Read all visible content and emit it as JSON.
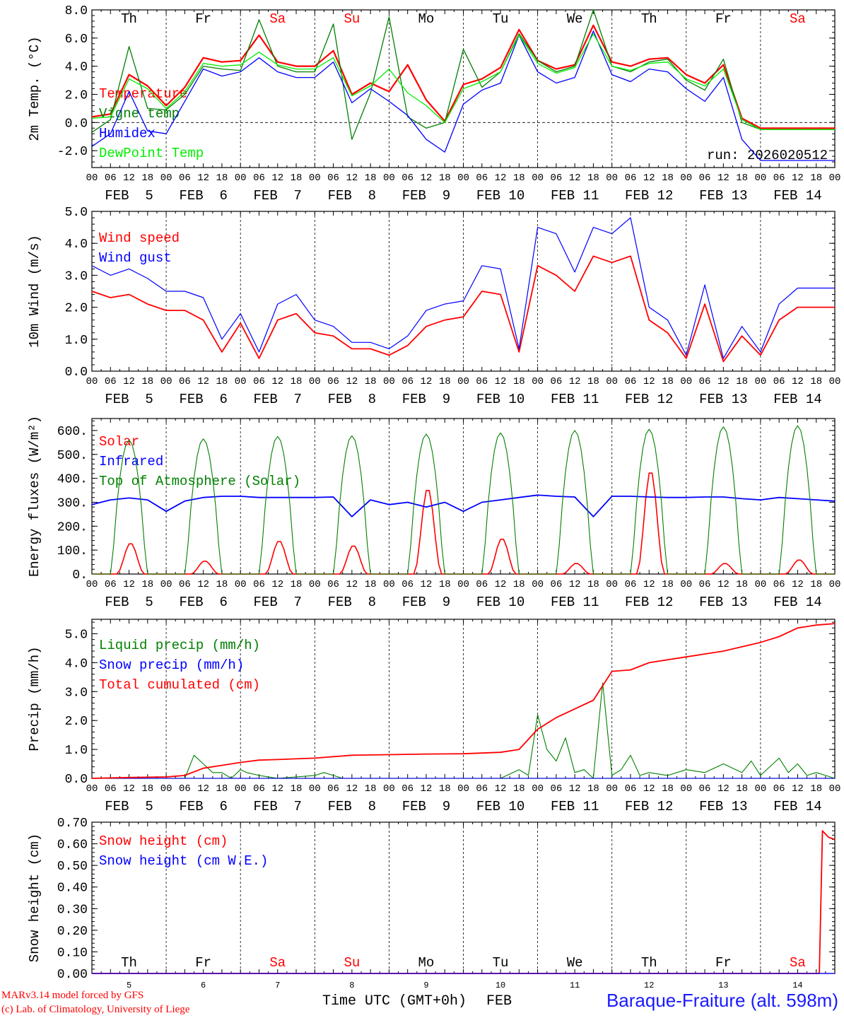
{
  "chart_data": [
    {
      "type": "line",
      "ylabel": "2m Temp. (°C)",
      "ylim": [
        -3.2,
        8.0
      ],
      "yticks": [
        8.0,
        6.0,
        4.0,
        2.0,
        0.0,
        -2.0
      ],
      "ytick_labels": [
        "8.0",
        "6.0",
        "4.0",
        "2.0",
        "0.0",
        "-2.0"
      ],
      "zero_line": true,
      "day_labels": [
        "Th",
        "Fr",
        "Sa",
        "Su",
        "Mo",
        "Tu",
        "We",
        "Th",
        "Fr",
        "Sa"
      ],
      "date_labels": [
        "FEB  5",
        "FEB  6",
        "FEB  7",
        "FEB  8",
        "FEB  9",
        "FEB 10",
        "FEB 11",
        "FEB 12",
        "FEB 13",
        "FEB 14"
      ],
      "hour_labels": [
        "00",
        "06",
        "12",
        "18"
      ],
      "annotation": "run: 2026020512",
      "x_hours": [
        0,
        6,
        12,
        18,
        24,
        30,
        36,
        42,
        48,
        54,
        60,
        66,
        72,
        78,
        84,
        90,
        96,
        102,
        108,
        114,
        120,
        126,
        132,
        138,
        144,
        150,
        156,
        162,
        168,
        174,
        180,
        186,
        192,
        198,
        204,
        210,
        216,
        222,
        228,
        234,
        240
      ],
      "series": [
        {
          "name": "Temperature",
          "color": "#ff0000",
          "width": 2.2,
          "values": [
            0.4,
            0.6,
            3.4,
            2.6,
            1.2,
            2.5,
            4.6,
            4.3,
            4.4,
            6.2,
            4.3,
            4.0,
            4.0,
            5.1,
            2.0,
            2.8,
            2.2,
            4.1,
            1.6,
            0.1,
            2.7,
            3.1,
            3.9,
            6.6,
            4.4,
            3.8,
            4.1,
            6.9,
            4.3,
            4.0,
            4.5,
            4.6,
            3.4,
            2.8,
            4.1,
            0.3,
            -0.4,
            -0.4,
            -0.4,
            -0.4,
            -0.4
          ]
        },
        {
          "name": "Vigne temp",
          "color": "#008000",
          "width": 1.3,
          "values": [
            -0.7,
            0.2,
            5.4,
            1.0,
            0.9,
            2.0,
            4.0,
            3.8,
            3.7,
            7.3,
            4.0,
            3.6,
            3.6,
            7.0,
            -1.2,
            2.1,
            7.5,
            0.4,
            -0.4,
            0.0,
            5.2,
            2.5,
            3.6,
            6.3,
            4.4,
            3.6,
            4.0,
            8.0,
            4.0,
            3.6,
            4.3,
            4.5,
            3.0,
            2.3,
            4.5,
            0.0,
            -0.5,
            -0.5,
            -0.5,
            -0.5,
            -0.5
          ]
        },
        {
          "name": "Humidex",
          "color": "#0000ff",
          "width": 1.3,
          "values": [
            -1.7,
            -0.8,
            2.2,
            -0.6,
            -0.8,
            1.5,
            3.8,
            3.3,
            3.6,
            4.6,
            3.6,
            3.2,
            3.2,
            4.3,
            1.4,
            2.4,
            1.5,
            0.5,
            -1.2,
            -2.1,
            1.3,
            2.3,
            2.8,
            6.2,
            3.6,
            2.8,
            3.2,
            6.5,
            3.4,
            2.9,
            3.8,
            3.6,
            2.4,
            1.5,
            3.2,
            -1.2,
            -2.7,
            -2.7,
            -2.7,
            -2.7,
            -2.7
          ]
        },
        {
          "name": "DewPoint Temp",
          "color": "#00ee00",
          "width": 1.3,
          "values": [
            0.3,
            0.4,
            3.1,
            2.4,
            1.0,
            2.2,
            4.2,
            4.0,
            4.1,
            5.0,
            4.1,
            3.8,
            3.8,
            4.6,
            1.9,
            2.6,
            3.8,
            2.1,
            1.2,
            0.0,
            2.4,
            2.9,
            3.6,
            6.2,
            4.2,
            3.5,
            3.9,
            6.3,
            4.0,
            3.7,
            4.2,
            4.3,
            3.1,
            2.6,
            3.8,
            0.2,
            -0.5,
            -0.5,
            -0.5,
            -0.5,
            -0.5
          ]
        }
      ]
    },
    {
      "type": "line",
      "ylabel": "10m Wind (m/s)",
      "ylim": [
        0.0,
        5.0
      ],
      "yticks": [
        5.0,
        4.0,
        3.0,
        2.0,
        1.0,
        0.0
      ],
      "ytick_labels": [
        "5.0",
        "4.0",
        "3.0",
        "2.0",
        "1.0",
        "0.0"
      ],
      "date_labels": [
        "FEB  5",
        "FEB  6",
        "FEB  7",
        "FEB  8",
        "FEB  9",
        "FEB 10",
        "FEB 11",
        "FEB 12",
        "FEB 13",
        "FEB 14"
      ],
      "hour_labels": [
        "00",
        "06",
        "12",
        "18"
      ],
      "x_hours": [
        0,
        6,
        12,
        18,
        24,
        30,
        36,
        42,
        48,
        54,
        60,
        66,
        72,
        78,
        84,
        90,
        96,
        102,
        108,
        114,
        120,
        126,
        132,
        138,
        144,
        150,
        156,
        162,
        168,
        174,
        180,
        186,
        192,
        198,
        204,
        210,
        216,
        222,
        228,
        234,
        240
      ],
      "series": [
        {
          "name": "Wind speed",
          "color": "#ff0000",
          "width": 1.8,
          "values": [
            2.5,
            2.3,
            2.4,
            2.1,
            1.9,
            1.9,
            1.6,
            0.6,
            1.5,
            0.4,
            1.6,
            1.8,
            1.2,
            1.1,
            0.7,
            0.7,
            0.5,
            0.8,
            1.4,
            1.6,
            1.7,
            2.5,
            2.4,
            0.6,
            3.3,
            3.0,
            2.5,
            3.6,
            3.4,
            3.6,
            1.6,
            1.2,
            0.4,
            2.1,
            0.3,
            1.1,
            0.5,
            1.6,
            2.0,
            2.0,
            2.0
          ]
        },
        {
          "name": "Wind gust",
          "color": "#0000ff",
          "width": 1.2,
          "values": [
            3.3,
            3.0,
            3.2,
            2.9,
            2.5,
            2.5,
            2.3,
            1.0,
            1.8,
            0.6,
            2.1,
            2.4,
            1.6,
            1.4,
            0.9,
            0.9,
            0.7,
            1.1,
            1.9,
            2.1,
            2.2,
            3.3,
            3.2,
            0.7,
            4.5,
            4.3,
            3.1,
            4.5,
            4.3,
            4.8,
            2.0,
            1.6,
            0.5,
            2.7,
            0.4,
            1.4,
            0.6,
            2.1,
            2.6,
            2.6,
            2.6
          ]
        }
      ]
    },
    {
      "type": "line",
      "ylabel": "Energy fluxes (W/m²)",
      "ylim": [
        0,
        650
      ],
      "yticks": [
        600,
        500,
        400,
        300,
        200,
        100,
        0
      ],
      "ytick_labels": [
        "600.",
        "500.",
        "400.",
        "300.",
        "200.",
        "100.",
        "0."
      ],
      "date_labels": [
        "FEB  5",
        "FEB  6",
        "FEB  7",
        "FEB  8",
        "FEB  9",
        "FEB 10",
        "FEB 11",
        "FEB 12",
        "FEB 13",
        "FEB 14"
      ],
      "hour_labels": [
        "00",
        "06",
        "12",
        "18"
      ],
      "daily_peaks": {
        "Solar": [
          130,
          55,
          140,
          120,
          360,
          150,
          45,
          435,
          45,
          60
        ],
        "Top of Atmosphere (Solar)": [
          560,
          565,
          575,
          578,
          585,
          590,
          600,
          605,
          615,
          620
        ]
      },
      "series": [
        {
          "name": "Solar",
          "color": "#ff0000",
          "width": 1.6
        },
        {
          "name": "Infrared",
          "color": "#0000ff",
          "width": 1.8,
          "x_hours": [
            0,
            6,
            12,
            18,
            24,
            30,
            36,
            42,
            48,
            54,
            60,
            66,
            72,
            78,
            84,
            90,
            96,
            102,
            108,
            114,
            120,
            126,
            132,
            138,
            144,
            150,
            156,
            162,
            168,
            174,
            180,
            186,
            192,
            198,
            204,
            210,
            216,
            222,
            228,
            234,
            240
          ],
          "values": [
            290,
            310,
            318,
            310,
            262,
            305,
            320,
            325,
            325,
            320,
            320,
            320,
            320,
            322,
            240,
            310,
            290,
            300,
            280,
            300,
            262,
            300,
            310,
            320,
            330,
            325,
            322,
            240,
            325,
            325,
            322,
            320,
            320,
            322,
            322,
            315,
            310,
            320,
            315,
            310,
            305
          ]
        },
        {
          "name": "Top of Atmosphere (Solar)",
          "color": "#008000",
          "width": 1.1
        }
      ]
    },
    {
      "type": "line",
      "ylabel": "Precip (mm/h)",
      "ylim": [
        0.0,
        5.5
      ],
      "yticks": [
        5.0,
        4.0,
        3.0,
        2.0,
        1.0,
        0.0
      ],
      "ytick_labels": [
        "5.0",
        "4.0",
        "3.0",
        "2.0",
        "1.0",
        "0.0"
      ],
      "date_labels": [
        "FEB  5",
        "FEB  6",
        "FEB  7",
        "FEB  8",
        "FEB  9",
        "FEB 10",
        "FEB 11",
        "FEB 12",
        "FEB 13",
        "FEB 14"
      ],
      "hour_labels": [
        "00",
        "06",
        "12",
        "18"
      ],
      "series": [
        {
          "name": "Liquid precip (mm/h)",
          "color": "#008000",
          "width": 1.1,
          "x_hours": [
            0,
            30,
            33,
            36,
            39,
            42,
            45,
            48,
            50,
            54,
            60,
            72,
            75,
            78,
            81,
            84,
            96,
            108,
            120,
            132,
            138,
            141,
            144,
            147,
            150,
            153,
            156,
            159,
            162,
            165,
            168,
            171,
            174,
            177,
            180,
            186,
            192,
            198,
            204,
            210,
            213,
            216,
            219,
            222,
            225,
            228,
            231,
            234,
            237,
            240
          ],
          "values": [
            0,
            0,
            0.8,
            0.5,
            0.2,
            0.2,
            0,
            0.3,
            0.2,
            0.1,
            0,
            0.1,
            0.2,
            0.1,
            0,
            0,
            0,
            0,
            0,
            0,
            0.3,
            0.1,
            2.2,
            1.0,
            0.6,
            1.4,
            0.2,
            0.3,
            0,
            3.3,
            0.1,
            0.3,
            0.8,
            0.1,
            0.2,
            0.1,
            0.3,
            0.2,
            0.5,
            0.2,
            0.6,
            0.1,
            0.4,
            0.7,
            0.2,
            0.5,
            0.1,
            0.2,
            0.1,
            0
          ]
        },
        {
          "name": "Snow precip (mm/h)",
          "color": "#0000ff",
          "width": 1.1,
          "x_hours": [
            0,
            24,
            48,
            72,
            96,
            120,
            144,
            168,
            192,
            216,
            240
          ],
          "values": [
            0,
            0,
            0,
            0,
            0,
            0,
            0,
            0,
            0,
            0,
            0
          ]
        },
        {
          "name": "Total cumulated (cm)",
          "color": "#ff0000",
          "width": 1.8,
          "x_hours": [
            0,
            12,
            24,
            30,
            36,
            42,
            48,
            54,
            60,
            72,
            84,
            96,
            108,
            120,
            132,
            138,
            144,
            150,
            156,
            162,
            168,
            174,
            180,
            192,
            204,
            216,
            222,
            228,
            234,
            240
          ],
          "values": [
            0,
            0.03,
            0.05,
            0.1,
            0.35,
            0.45,
            0.55,
            0.63,
            0.65,
            0.7,
            0.8,
            0.82,
            0.84,
            0.85,
            0.9,
            1.0,
            1.7,
            2.1,
            2.4,
            2.7,
            3.7,
            3.75,
            4.0,
            4.2,
            4.4,
            4.7,
            4.9,
            5.2,
            5.3,
            5.35
          ]
        }
      ]
    },
    {
      "type": "line",
      "ylabel": "Snow height (cm)",
      "ylim": [
        0.0,
        0.7
      ],
      "yticks": [
        0.7,
        0.6,
        0.5,
        0.4,
        0.3,
        0.2,
        0.1,
        0.0
      ],
      "ytick_labels": [
        "0.70",
        "0.60",
        "0.50",
        "0.40",
        "0.30",
        "0.20",
        "0.10",
        "0.00"
      ],
      "day_labels": [
        "Th",
        "Fr",
        "Sa",
        "Su",
        "Mo",
        "Tu",
        "We",
        "Th",
        "Fr",
        "Sa"
      ],
      "day_numbers": [
        "5",
        "6",
        "7",
        "8",
        "9",
        "10",
        "11",
        "12",
        "13",
        "14"
      ],
      "series": [
        {
          "name": "Snow height (cm)",
          "color": "#ff0000",
          "width": 1.8,
          "x_hours": [
            0,
            235,
            236,
            238,
            240
          ],
          "values": [
            0,
            0,
            0.66,
            0.63,
            0.62
          ]
        },
        {
          "name": "Snow height (cm W.E.)",
          "color": "#0000ff",
          "width": 1.2,
          "x_hours": [
            0,
            240
          ],
          "values": [
            0,
            0
          ]
        }
      ]
    }
  ],
  "footer": {
    "credit_line1": "MARv3.14 model forced by GFS",
    "credit_line2": "(c) Lab. of Climatology, University of Liege",
    "xlabel": "Time UTC (GMT+0h)",
    "month": "FEB",
    "station": "Baraque-Fraiture (alt. 598m)"
  },
  "colors": {
    "weekend": "#ff0000",
    "weekday": "#000000",
    "station": "#1a1aff"
  }
}
